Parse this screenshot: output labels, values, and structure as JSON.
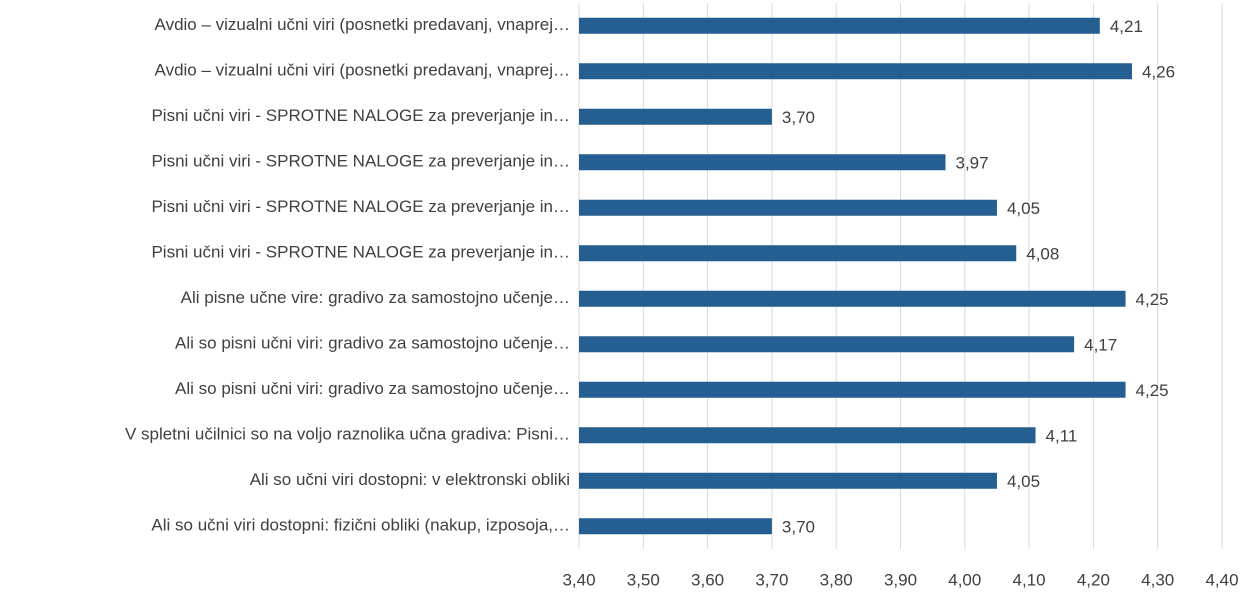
{
  "chart_data": {
    "type": "barh",
    "categories": [
      "Avdio – vizualni učni viri (posnetki predavanj, vnaprej…",
      "Avdio – vizualni učni viri (posnetki predavanj, vnaprej…",
      "Pisni učni viri - SPROTNE NALOGE za preverjanje in…",
      "Pisni učni viri - SPROTNE NALOGE za preverjanje in…",
      "Pisni učni viri - SPROTNE NALOGE za preverjanje in…",
      "Pisni učni viri - SPROTNE NALOGE za preverjanje in…",
      "Ali pisne učne vire: gradivo za samostojno učenje…",
      "Ali so pisni učni viri: gradivo za samostojno učenje…",
      "Ali so pisni učni viri: gradivo za samostojno učenje…",
      "V spletni učilnici so na voljo raznolika učna gradiva: Pisni…",
      "Ali so učni viri dostopni: v elektronski obliki",
      "Ali so učni viri dostopni: fizični obliki (nakup, izposoja,…"
    ],
    "values": [
      4.21,
      4.26,
      3.7,
      3.97,
      4.05,
      4.08,
      4.25,
      4.17,
      4.25,
      4.11,
      4.05,
      3.7
    ],
    "value_labels": [
      "4,21",
      "4,26",
      "3,70",
      "3,97",
      "4,05",
      "4,08",
      "4,25",
      "4,17",
      "4,25",
      "4,11",
      "4,05",
      "3,70"
    ],
    "color": "#255e91",
    "xlim": [
      3.4,
      4.4
    ],
    "xticks": [
      {
        "value": 3.4,
        "label": "3,40"
      },
      {
        "value": 3.5,
        "label": "3,50"
      },
      {
        "value": 3.6,
        "label": "3,60"
      },
      {
        "value": 3.7,
        "label": "3,70"
      },
      {
        "value": 3.8,
        "label": "3,80"
      },
      {
        "value": 3.9,
        "label": "3,90"
      },
      {
        "value": 4.0,
        "label": "4,00"
      },
      {
        "value": 4.1,
        "label": "4,10"
      },
      {
        "value": 4.2,
        "label": "4,20"
      },
      {
        "value": 4.3,
        "label": "4,30"
      },
      {
        "value": 4.4,
        "label": "4,40"
      }
    ],
    "grid": true
  }
}
